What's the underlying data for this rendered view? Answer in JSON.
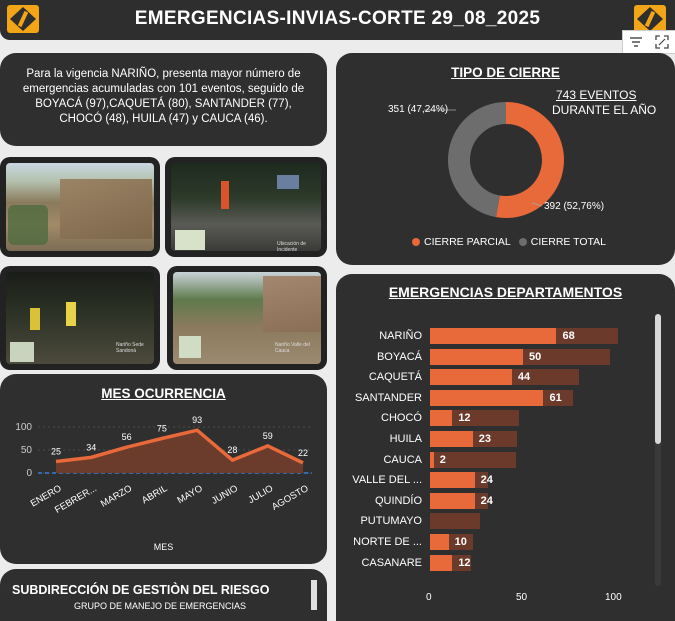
{
  "header": {
    "title": "EMERGENCIAS-INVIAS-CORTE 29_08_2025"
  },
  "summary": {
    "text": "Para la vigencia  NARIÑO, presenta mayor número de emergencias acumuladas con 101 eventos, seguido de BOYACÁ (97),CAQUETÁ (80), SANTANDER (77), CHOCÓ (48),  HUILA (47)  y  CAUCA (46)."
  },
  "photos": [
    {
      "caption": ""
    },
    {
      "caption": "Ubicación de Incidente"
    },
    {
      "caption": "Nariño Sede Sandoná"
    },
    {
      "caption": "Nariño Valle del Cauca"
    }
  ],
  "tipo_cierre": {
    "title": "TIPO DE CIERRE",
    "events_label": "743 EVENTOS",
    "events_sub": "DURANTE EL AÑO",
    "label_total": "351 (47,24%)",
    "label_parcial": "392 (52,76%)",
    "legend": [
      {
        "name": "CIERRE PARCIAL",
        "color": "#e8693a"
      },
      {
        "name": "CIERRE TOTAL",
        "color": "#6d6d6d"
      }
    ],
    "chart_data": {
      "type": "pie",
      "title": "TIPO DE CIERRE",
      "labels": [
        "CIERRE PARCIAL",
        "CIERRE TOTAL"
      ],
      "values": [
        392,
        351
      ],
      "percent": [
        52.76,
        47.24
      ]
    }
  },
  "mes": {
    "title": "MES OCURRENCIA",
    "xlabel": "MES",
    "chart_data": {
      "type": "area",
      "title": "MES OCURRENCIA",
      "categories": [
        "ENERO",
        "FEBRER...",
        "MARZO",
        "ABRIL",
        "MAYO",
        "JUNIO",
        "JULIO",
        "AGOSTO"
      ],
      "values": [
        25,
        34,
        56,
        75,
        93,
        28,
        59,
        22
      ],
      "yticks": [
        "0",
        "50",
        "100"
      ],
      "ylim": [
        0,
        100
      ],
      "xlabel": "MES"
    }
  },
  "departamentos": {
    "title": "EMERGENCIAS DEPARTAMENTOS",
    "xticks": [
      "0",
      "50",
      "100"
    ],
    "chart_data": {
      "type": "bar",
      "title": "EMERGENCIAS DEPARTAMENTOS",
      "categories": [
        "NARIÑO",
        "BOYACÁ",
        "CAQUETÁ",
        "SANTANDER",
        "CHOCÓ",
        "HUILA",
        "CAUCA",
        "VALLE DEL ...",
        "QUINDÍO",
        "PUTUMAYO",
        "NORTE DE ...",
        "CASANARE"
      ],
      "series": [
        {
          "name": "total",
          "values": [
            101,
            97,
            80,
            77,
            48,
            47,
            46,
            31,
            31,
            27,
            23,
            22
          ]
        },
        {
          "name": "parcial",
          "values": [
            68,
            50,
            44,
            61,
            12,
            23,
            2,
            24,
            24,
            null,
            10,
            12
          ]
        }
      ],
      "value_labels": [
        "68",
        "50",
        "44",
        "61",
        "12",
        "23",
        "2",
        "24",
        "24",
        "",
        "10",
        "12"
      ],
      "xlim": [
        0,
        100
      ]
    }
  },
  "footer": {
    "title": "SUBDIRECCIÓN DE GESTIÒN DEL RIESGO",
    "subtitle": "GRUPO DE MANEJO DE EMERGENCIAS"
  }
}
